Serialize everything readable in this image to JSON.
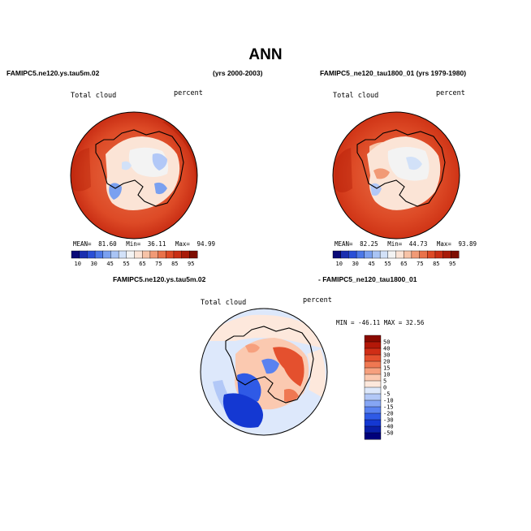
{
  "title": "ANN",
  "panels": [
    {
      "case_name": "FAMIPC5.ne120.ys.tau5m.02",
      "years": "(yrs 2000-2003)",
      "variable": "Total cloud",
      "units": "percent",
      "stats": {
        "mean_label": "MEAN=",
        "mean": "81.60",
        "min_label": "Min=",
        "min": "36.11",
        "max_label": "Max=",
        "max": "94.99"
      },
      "colorbar_labels": [
        "10",
        "30",
        "45",
        "55",
        "65",
        "75",
        "85",
        "95"
      ]
    },
    {
      "case_name": "FAMIPC5_ne120_tau1800_01 (yrs 1979-1980)",
      "variable": "Total cloud",
      "units": "percent",
      "stats": {
        "mean_label": "MEAN=",
        "mean": "82.25",
        "min_label": "Min=",
        "min": "44.73",
        "max_label": "Max=",
        "max": "93.89"
      },
      "colorbar_labels": [
        "10",
        "30",
        "45",
        "55",
        "65",
        "75",
        "85",
        "95"
      ]
    },
    {
      "case_a": "FAMIPC5.ne120.ys.tau5m.02",
      "case_b": "- FAMIPC5_ne120_tau1800_01",
      "variable": "Total cloud",
      "units": "percent",
      "minmax_text": "MIN = -46.11  MAX =  32.56",
      "colorbar_labels": [
        "50",
        "40",
        "30",
        "20",
        "15",
        "10",
        "5",
        "0",
        "-5",
        "-10",
        "-15",
        "-20",
        "-30",
        "-40",
        "-50"
      ]
    }
  ],
  "chart_data": [
    {
      "type": "heatmap",
      "projection": "polar stereographic, Antarctica",
      "title": "FAMIPC5.ne120.ys.tau5m.02",
      "variable": "Total cloud",
      "units": "percent",
      "mean": 81.6,
      "min": 36.11,
      "max": 94.99,
      "levels": [
        10,
        20,
        30,
        40,
        45,
        50,
        55,
        60,
        65,
        70,
        75,
        80,
        85,
        90,
        95
      ],
      "colors": [
        "#0a0a78",
        "#1a2fb0",
        "#2a4fd6",
        "#4c78e8",
        "#7aa0f0",
        "#a9c4f5",
        "#d2e1f8",
        "#f3f3f3",
        "#fbe4d6",
        "#f7c3a7",
        "#f19a76",
        "#e9724a",
        "#dd4a26",
        "#c92e14",
        "#a81a08",
        "#7e0e02"
      ]
    },
    {
      "type": "heatmap",
      "projection": "polar stereographic, Antarctica",
      "title": "FAMIPC5_ne120_tau1800_01 (yrs 1979-1980)",
      "variable": "Total cloud",
      "units": "percent",
      "mean": 82.25,
      "min": 44.73,
      "max": 93.89,
      "levels": [
        10,
        20,
        30,
        40,
        45,
        50,
        55,
        60,
        65,
        70,
        75,
        80,
        85,
        90,
        95
      ],
      "colors": [
        "#0a0a78",
        "#1a2fb0",
        "#2a4fd6",
        "#4c78e8",
        "#7aa0f0",
        "#a9c4f5",
        "#d2e1f8",
        "#f3f3f3",
        "#fbe4d6",
        "#f7c3a7",
        "#f19a76",
        "#e9724a",
        "#dd4a26",
        "#c92e14",
        "#a81a08",
        "#7e0e02"
      ]
    },
    {
      "type": "heatmap",
      "projection": "polar stereographic, Antarctica",
      "title": "FAMIPC5.ne120.ys.tau5m.02 - FAMIPC5_ne120_tau1800_01",
      "variable": "Total cloud",
      "units": "percent",
      "min": -46.11,
      "max": 32.56,
      "levels": [
        -50,
        -40,
        -30,
        -20,
        -15,
        -10,
        -5,
        0,
        5,
        10,
        15,
        20,
        30,
        40,
        50
      ],
      "colors": [
        "#00007a",
        "#0a1fa8",
        "#1438d2",
        "#2f5ae6",
        "#5a82f0",
        "#86a6f4",
        "#b2c8f7",
        "#dde8fb",
        "#fde8dc",
        "#fbc9b0",
        "#f6a07e",
        "#ef7852",
        "#e4502e",
        "#d02e16",
        "#b31808",
        "#8a0a00"
      ]
    }
  ]
}
